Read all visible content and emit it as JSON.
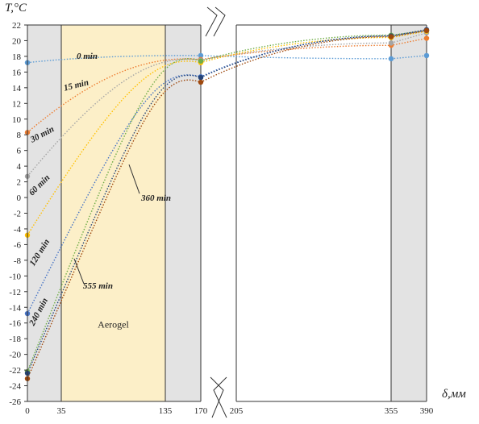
{
  "chart_data": {
    "type": "line",
    "ylabel": "T,°C",
    "xlabel": "δ,мм",
    "ylim": [
      -26,
      22
    ],
    "y_ticks": [
      22,
      20,
      18,
      16,
      14,
      12,
      10,
      8,
      6,
      4,
      2,
      0,
      -2,
      -4,
      -6,
      -8,
      -10,
      -12,
      -14,
      -16,
      -18,
      -20,
      -22,
      -24,
      -26
    ],
    "x_ticks": [
      "0",
      "35",
      "135",
      "170",
      "205",
      "355",
      "390"
    ],
    "axis_break_between": [
      "170",
      "205"
    ],
    "regions": [
      {
        "from": "0",
        "to": "35",
        "label": "",
        "color": "#e3e3e3"
      },
      {
        "from": "35",
        "to": "135",
        "label": "Aerogel",
        "color": "#fcefc8"
      },
      {
        "from": "135",
        "to": "170",
        "label": "",
        "color": "#e3e3e3"
      },
      {
        "from": "205",
        "to": "355",
        "label": "",
        "color": "#ffffff"
      },
      {
        "from": "355",
        "to": "390",
        "label": "",
        "color": "#e3e3e3"
      }
    ],
    "series": [
      {
        "name": "0 min",
        "color": "#5b9bd5",
        "points": [
          [
            "0",
            17.2
          ],
          [
            "170",
            18.1
          ],
          [
            "355",
            17.7
          ],
          [
            "390",
            18.1
          ]
        ]
      },
      {
        "name": "15 min",
        "color": "#ed7d31",
        "points": [
          [
            "0",
            8.3
          ],
          [
            "170",
            17.6
          ],
          [
            "355",
            19.4
          ],
          [
            "390",
            20.3
          ]
        ]
      },
      {
        "name": "30 min",
        "color": "#a5a5a5",
        "points": [
          [
            "0",
            2.7
          ],
          [
            "170",
            17.5
          ],
          [
            "355",
            19.7
          ],
          [
            "390",
            21.0
          ]
        ]
      },
      {
        "name": "60 min",
        "color": "#ffc000",
        "points": [
          [
            "0",
            -4.8
          ],
          [
            "170",
            17.2
          ],
          [
            "355",
            20.4
          ],
          [
            "390",
            21.2
          ]
        ]
      },
      {
        "name": "120 min",
        "color": "#4472c4",
        "points": [
          [
            "0",
            -14.8
          ],
          [
            "170",
            15.4
          ],
          [
            "355",
            20.6
          ],
          [
            "390",
            21.3
          ]
        ]
      },
      {
        "name": "240 min",
        "color": "#70ad47",
        "points": [
          [
            "0",
            -22.2
          ],
          [
            "170",
            17.4
          ],
          [
            "355",
            20.7
          ],
          [
            "390",
            21.3
          ]
        ]
      },
      {
        "name": "360 min",
        "color": "#264478",
        "points": [
          [
            "0",
            -22.4
          ],
          [
            "170",
            15.3
          ],
          [
            "355",
            20.6
          ],
          [
            "390",
            21.4
          ]
        ]
      },
      {
        "name": "555 min",
        "color": "#9e480e",
        "points": [
          [
            "0",
            -23.1
          ],
          [
            "170",
            14.7
          ],
          [
            "355",
            20.5
          ],
          [
            "390",
            21.3
          ]
        ]
      }
    ],
    "grid": false
  }
}
